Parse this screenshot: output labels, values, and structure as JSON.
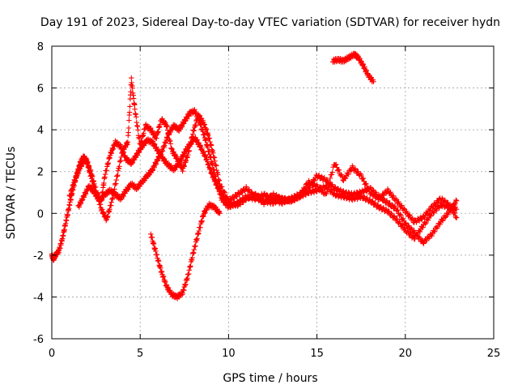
{
  "chart_data": {
    "type": "scatter",
    "title": "Day 191 of 2023, Sidereal Day-to-day VTEC variation (SDTVAR) for receiver hydn",
    "xlabel": "GPS time / hours",
    "ylabel": "SDTVAR / TECUs",
    "xlim": [
      0,
      25
    ],
    "ylim": [
      -6,
      8
    ],
    "xticks": [
      "0",
      "5",
      "10",
      "15",
      "20",
      "25"
    ],
    "yticks": [
      "-6",
      "-4",
      "-2",
      "0",
      "2",
      "4",
      "6",
      "8"
    ],
    "grid": true,
    "marker": "+",
    "color": "#ff0000",
    "series": [
      {
        "name": "track-1",
        "x": [
          0,
          0.1,
          0.2,
          0.4,
          0.6,
          0.8,
          1.0,
          1.2,
          1.4,
          1.6,
          1.8,
          2.0,
          2.2,
          2.5,
          2.8,
          3.0,
          3.3,
          3.6,
          3.9,
          4.2,
          4.5,
          4.8,
          5.1,
          5.4,
          5.7,
          6.0,
          6.3,
          6.6,
          6.9,
          7.2,
          7.5,
          7.8,
          8.1,
          8.4,
          8.7,
          9.0,
          9.3,
          9.6,
          10.0,
          10.5,
          11.0,
          11.5,
          12.0,
          12.5,
          13.0,
          13.5,
          14.0,
          14.5,
          15.0,
          15.5,
          16.0,
          16.5,
          17.0,
          17.5,
          18.0,
          18.5,
          19.0,
          19.5,
          20.0,
          20.5,
          21.0,
          21.5,
          22.0,
          22.5,
          22.9
        ],
        "y": [
          -2.0,
          -2.2,
          -2.0,
          -1.8,
          -1.2,
          -0.4,
          0.4,
          1.2,
          1.8,
          2.4,
          2.7,
          2.5,
          1.8,
          1.0,
          0.6,
          1.8,
          2.8,
          3.4,
          3.2,
          2.6,
          2.4,
          2.8,
          3.2,
          3.5,
          3.4,
          3.0,
          2.6,
          2.3,
          2.1,
          2.4,
          2.9,
          3.3,
          3.6,
          3.2,
          2.7,
          2.0,
          1.4,
          0.9,
          0.5,
          0.4,
          0.7,
          0.9,
          0.6,
          0.5,
          0.7,
          0.6,
          0.8,
          1.0,
          1.1,
          1.3,
          0.9,
          0.8,
          0.7,
          0.8,
          0.6,
          0.3,
          0.1,
          -0.3,
          -0.8,
          -1.2,
          -0.6,
          0.0,
          0.4,
          0.3,
          0.2
        ]
      },
      {
        "name": "track-2",
        "x": [
          1.5,
          1.8,
          2.1,
          2.4,
          2.7,
          3.0,
          3.3,
          3.6,
          3.9,
          4.2,
          4.5,
          4.8,
          5.1,
          5.4,
          5.7,
          6.0,
          6.3,
          6.6,
          6.9,
          7.2,
          7.5,
          7.8,
          8.1,
          8.4,
          8.7,
          9.0,
          9.3,
          9.6,
          10.0,
          10.5,
          11.0,
          11.5,
          12.0,
          12.5,
          13.0,
          13.5,
          14.0,
          14.5,
          15.0,
          15.5,
          16.0,
          16.5,
          17.0,
          17.5,
          18.0,
          18.5,
          19.0,
          19.5,
          20.0,
          20.5,
          21.0,
          21.5,
          22.0,
          22.5,
          22.9
        ],
        "y": [
          0.3,
          0.8,
          1.3,
          1.0,
          0.6,
          0.9,
          1.1,
          0.9,
          0.7,
          1.1,
          1.4,
          1.2,
          1.5,
          1.8,
          2.1,
          2.6,
          3.1,
          3.8,
          4.2,
          4.0,
          4.4,
          4.8,
          4.9,
          4.3,
          3.5,
          2.6,
          1.6,
          0.7,
          0.3,
          0.5,
          0.8,
          0.7,
          0.9,
          0.7,
          0.5,
          0.7,
          0.9,
          1.2,
          1.8,
          1.6,
          1.2,
          1.0,
          0.9,
          1.0,
          1.2,
          0.8,
          0.5,
          0.2,
          -0.5,
          -0.9,
          -1.4,
          -1.0,
          -0.4,
          0.1,
          0.6
        ]
      },
      {
        "name": "track-3",
        "x": [
          1.0,
          1.3,
          1.6,
          1.9,
          2.2,
          2.5,
          2.8,
          3.1,
          3.4,
          3.7,
          4.0,
          4.3,
          4.5,
          4.7,
          5.0,
          5.3,
          5.6,
          5.9,
          6.2,
          6.5,
          6.8,
          7.1,
          7.4,
          7.7,
          8.0,
          8.3,
          8.6,
          8.9,
          9.2,
          9.5,
          10.0,
          10.5,
          11.0,
          11.5,
          12.0,
          12.5,
          13.0,
          13.5,
          14.0,
          14.5,
          15.0,
          15.5,
          16.0,
          16.5,
          17.0,
          17.5,
          18.0,
          18.5,
          19.0,
          19.5,
          20.0,
          20.5,
          21.0,
          21.5,
          22.0,
          22.5,
          22.9
        ],
        "y": [
          0.8,
          1.6,
          2.2,
          2.6,
          2.0,
          1.1,
          0.2,
          -0.3,
          0.6,
          1.8,
          3.0,
          3.4,
          6.4,
          5.0,
          3.2,
          4.2,
          4.0,
          3.6,
          4.5,
          4.2,
          3.0,
          2.6,
          2.1,
          2.8,
          3.9,
          4.7,
          4.3,
          3.6,
          2.6,
          1.4,
          0.6,
          0.9,
          1.2,
          0.8,
          0.5,
          0.9,
          0.7,
          0.6,
          0.8,
          1.5,
          1.3,
          0.9,
          2.4,
          1.6,
          2.2,
          1.8,
          1.0,
          0.7,
          1.1,
          0.6,
          0.1,
          -0.4,
          -0.2,
          0.3,
          0.7,
          0.4,
          -0.2
        ]
      },
      {
        "name": "track-4",
        "x": [
          5.6,
          5.9,
          6.2,
          6.5,
          6.8,
          7.1,
          7.4,
          7.7,
          8.0,
          8.3,
          8.6,
          8.9,
          9.2,
          9.5
        ],
        "y": [
          -1.0,
          -1.9,
          -2.8,
          -3.5,
          -3.9,
          -4.0,
          -3.8,
          -3.0,
          -1.9,
          -0.9,
          0.0,
          0.4,
          0.3,
          0.0
        ]
      },
      {
        "name": "track-5",
        "x": [
          15.9,
          16.2,
          16.5,
          16.8,
          17.1,
          17.3,
          17.6,
          17.9,
          18.2
        ],
        "y": [
          7.3,
          7.35,
          7.3,
          7.45,
          7.6,
          7.5,
          7.1,
          6.6,
          6.3
        ]
      }
    ]
  }
}
